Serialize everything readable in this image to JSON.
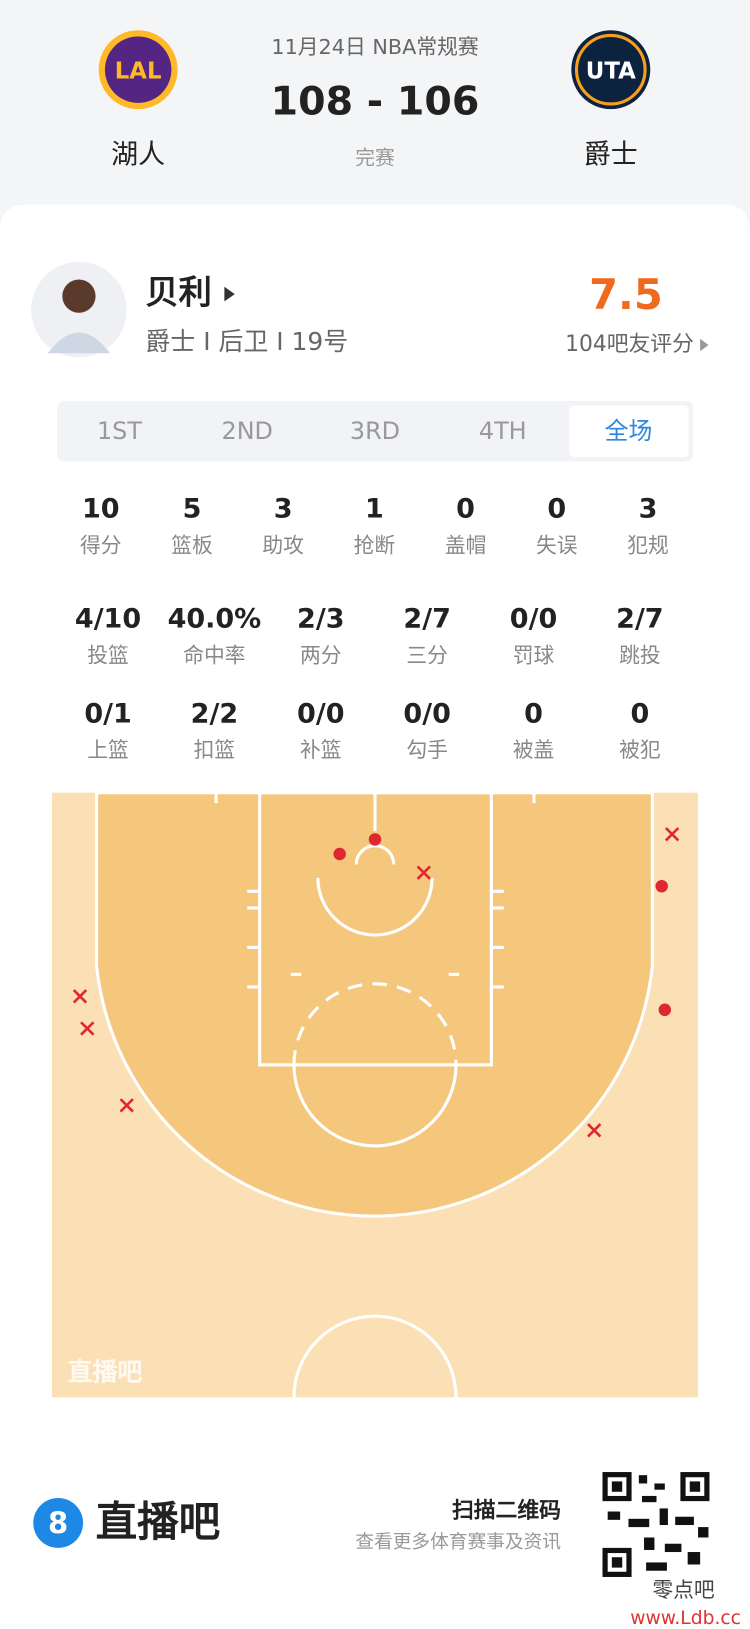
{
  "header": {
    "date": "11月24日 NBA常规赛",
    "score": "108 - 106",
    "status": "完赛",
    "home": {
      "abbr": "LAL",
      "name": "湖人"
    },
    "away": {
      "abbr": "UTA",
      "name": "爵士"
    }
  },
  "player": {
    "name": "贝利",
    "info": "爵士 I 后卫 I 19号",
    "rating": "7.5",
    "rating_label": "104吧友评分"
  },
  "tabs": [
    "1ST",
    "2ND",
    "3RD",
    "4TH",
    "全场"
  ],
  "stats": [
    [
      {
        "value": "10",
        "label": "得分"
      },
      {
        "value": "5",
        "label": "篮板"
      },
      {
        "value": "3",
        "label": "助攻"
      },
      {
        "value": "1",
        "label": "抢断"
      },
      {
        "value": "0",
        "label": "盖帽"
      },
      {
        "value": "0",
        "label": "失误"
      },
      {
        "value": "3",
        "label": "犯规"
      }
    ],
    [
      {
        "value": "4/10",
        "label": "投篮"
      },
      {
        "value": "40.0%",
        "label": "命中率"
      },
      {
        "value": "2/3",
        "label": "两分"
      },
      {
        "value": "2/7",
        "label": "三分"
      },
      {
        "value": "0/0",
        "label": "罚球"
      },
      {
        "value": "2/7",
        "label": "跳投"
      }
    ],
    [
      {
        "value": "0/1",
        "label": "上篮"
      },
      {
        "value": "2/2",
        "label": "扣篮"
      },
      {
        "value": "0/0",
        "label": "补篮"
      },
      {
        "value": "0/0",
        "label": "勾手"
      },
      {
        "value": "0",
        "label": "被盖"
      },
      {
        "value": "0",
        "label": "被犯"
      }
    ]
  ],
  "court": {
    "watermark": "直播吧"
  },
  "footer": {
    "logo": "8",
    "brand": "直播吧",
    "scan": "扫描二维码",
    "desc": "查看更多体育赛事及资讯",
    "watermark": "零点吧",
    "site": "www.Ldb.cc"
  }
}
